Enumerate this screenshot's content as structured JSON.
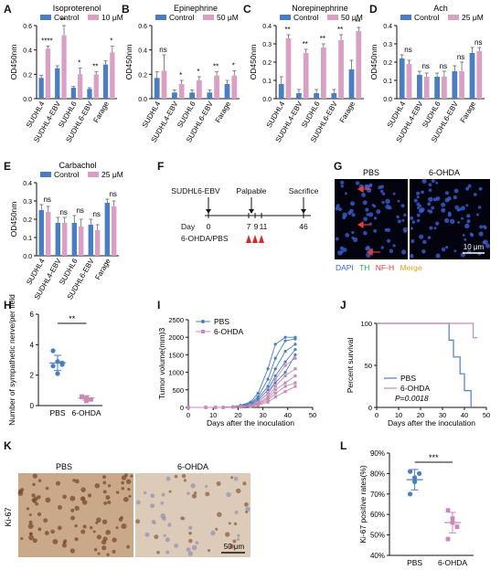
{
  "colors": {
    "control": "#4a7ec2",
    "treatment": "#d9a0c4",
    "dot_pbs": "#4a7ec2",
    "dot_6ohda": "#c98ab7",
    "arrow": "#e0403a",
    "dapi": "#3a5fd0",
    "th": "#22b14c",
    "nfh": "#e03a3a",
    "merge": "#e0a020"
  },
  "panel_letters": [
    "A",
    "B",
    "C",
    "D",
    "E",
    "F",
    "G",
    "H",
    "I",
    "J",
    "K",
    "L"
  ],
  "cell_lines": [
    "SUDHL4",
    "SUDHL4-EBV",
    "SUDHL6",
    "SUDHL6-EBV",
    "Farage"
  ],
  "legend": {
    "control": "Control",
    "ten_um": "10 μM",
    "fifty_um": "50 μM",
    "twentyfive_um": "25 μM"
  },
  "ylabel_od": "OD450nm",
  "panel_f": {
    "cell": "SUDHL6-EBV",
    "palpable": "Palpable",
    "sacrifice": "Sacrifice",
    "day_label": "Day",
    "days": [
      "0",
      "7",
      "9",
      "11",
      "46"
    ],
    "treatment": "6-OHDA/PBS"
  },
  "panel_g": {
    "left": "PBS",
    "right": "6-OHDA",
    "scale": "10 μm",
    "stain_dapi": "DAPI",
    "stain_th": "TH",
    "stain_nfh": "NF-H",
    "stain_merge": "Merge"
  },
  "panel_k": {
    "left": "PBS",
    "right": "6-OHDA",
    "ylabel": "Ki-67",
    "scale": "50 μm"
  },
  "chart_data": [
    {
      "id": "A",
      "type": "bar",
      "title": "Isoproterenol",
      "ylabel": "OD450nm",
      "ylim": [
        0,
        0.6
      ],
      "yticks": [
        "0.0",
        "0.2",
        "0.4",
        "0.6"
      ],
      "categories": [
        "SUDHL4",
        "SUDHL4-EBV",
        "SUDHL6",
        "SUDHL6-EBV",
        "Farage"
      ],
      "series": [
        {
          "name": "Control",
          "values": [
            0.17,
            0.25,
            0.09,
            0.08,
            0.28
          ],
          "errors": [
            0.02,
            0.02,
            0.01,
            0.01,
            0.03
          ]
        },
        {
          "name": "10 μM",
          "values": [
            0.41,
            0.52,
            0.2,
            0.2,
            0.38
          ],
          "errors": [
            0.02,
            0.08,
            0.05,
            0.02,
            0.05
          ]
        }
      ],
      "annotations": [
        "****",
        "**",
        "*",
        "**",
        "*"
      ]
    },
    {
      "id": "B",
      "type": "bar",
      "title": "Epinephrine",
      "ylabel": "OD450nm",
      "ylim": [
        0,
        0.6
      ],
      "yticks": [
        "0.0",
        "0.2",
        "0.4",
        "0.6"
      ],
      "categories": [
        "SUDHL4",
        "SUDHL4-EBV",
        "SUDHL6",
        "SUDHL6-EBV",
        "Farage"
      ],
      "series": [
        {
          "name": "Control",
          "values": [
            0.17,
            0.05,
            0.05,
            0.05,
            0.12
          ],
          "errors": [
            0.05,
            0.02,
            0.02,
            0.02,
            0.03
          ]
        },
        {
          "name": "50 μM",
          "values": [
            0.23,
            0.12,
            0.15,
            0.19,
            0.19
          ],
          "errors": [
            0.13,
            0.03,
            0.03,
            0.03,
            0.04
          ]
        }
      ],
      "annotations": [
        "ns",
        "*",
        "*",
        "**",
        "*"
      ]
    },
    {
      "id": "C",
      "type": "bar",
      "title": "Norepinephrine",
      "ylabel": "OD450nm",
      "ylim": [
        0,
        0.4
      ],
      "yticks": [
        "0.0",
        "0.1",
        "0.2",
        "0.3",
        "0.4"
      ],
      "categories": [
        "SUDHL4",
        "SUDHL4-EBV",
        "SUDHL6",
        "SUDHL6-EBV",
        "Farage"
      ],
      "series": [
        {
          "name": "Control",
          "values": [
            0.08,
            0.03,
            0.03,
            0.03,
            0.16
          ],
          "errors": [
            0.04,
            0.02,
            0.02,
            0.02,
            0.05
          ]
        },
        {
          "name": "50 μM",
          "values": [
            0.33,
            0.25,
            0.28,
            0.32,
            0.37
          ],
          "errors": [
            0.02,
            0.02,
            0.02,
            0.03,
            0.02
          ]
        }
      ],
      "annotations": [
        "**",
        "**",
        "**",
        "**",
        "**"
      ]
    },
    {
      "id": "D",
      "type": "bar",
      "title": "Ach",
      "ylabel": "OD450nm",
      "ylim": [
        0,
        0.4
      ],
      "yticks": [
        "0.0",
        "0.1",
        "0.2",
        "0.3",
        "0.4"
      ],
      "categories": [
        "SUDHL4",
        "SUDHL4-EBV",
        "SUDHL6",
        "SUDHL6-EBV",
        "Farage"
      ],
      "series": [
        {
          "name": "Control",
          "values": [
            0.22,
            0.13,
            0.12,
            0.15,
            0.25
          ],
          "errors": [
            0.02,
            0.02,
            0.02,
            0.03,
            0.03
          ]
        },
        {
          "name": "25 μM",
          "values": [
            0.19,
            0.12,
            0.12,
            0.15,
            0.26
          ],
          "errors": [
            0.02,
            0.02,
            0.03,
            0.05,
            0.02
          ]
        }
      ],
      "annotations": [
        "ns",
        "ns",
        "ns",
        "ns",
        "ns"
      ]
    },
    {
      "id": "E",
      "type": "bar",
      "title": "Carbachol",
      "ylabel": "OD450nm",
      "ylim": [
        0,
        0.4
      ],
      "yticks": [
        "0.0",
        "0.1",
        "0.2",
        "0.3",
        "0.4"
      ],
      "categories": [
        "SUDHL4",
        "SUDHL4-EBV",
        "SUDHL6",
        "SUDHL6-EBV",
        "Farage"
      ],
      "series": [
        {
          "name": "Control",
          "values": [
            0.25,
            0.18,
            0.18,
            0.17,
            0.29
          ],
          "errors": [
            0.03,
            0.03,
            0.04,
            0.03,
            0.02
          ]
        },
        {
          "name": "25 μM",
          "values": [
            0.24,
            0.18,
            0.16,
            0.14,
            0.27
          ],
          "errors": [
            0.03,
            0.03,
            0.04,
            0.03,
            0.03
          ]
        }
      ],
      "annotations": [
        "ns",
        "ns",
        "ns",
        "ns",
        "ns"
      ]
    },
    {
      "id": "H",
      "type": "scatter",
      "ylabel": "Number of sympathetic nerve/per field",
      "ylim": [
        0,
        6
      ],
      "yticks": [
        "0",
        "2",
        "4",
        "6"
      ],
      "categories": [
        "PBS",
        "6-OHDA"
      ],
      "series": [
        {
          "name": "PBS",
          "values": [
            3.6,
            2.9,
            2.7,
            2.6,
            2.1,
            2.8
          ],
          "mean": 2.8,
          "sd": 0.5
        },
        {
          "name": "6-OHDA",
          "values": [
            0.6,
            0.5,
            0.4,
            0.55,
            0.3
          ],
          "mean": 0.5,
          "sd": 0.15
        }
      ],
      "significance": "**"
    },
    {
      "id": "I",
      "type": "line",
      "ylabel": "Tumor volume(mm)3",
      "xlabel": "Days after the inoculation",
      "xlim": [
        0,
        50
      ],
      "ylim": [
        0,
        2500
      ],
      "xticks": [
        "0",
        "10",
        "20",
        "30",
        "40",
        "50"
      ],
      "yticks": [
        "0",
        "500",
        "1000",
        "1500",
        "2000",
        "2500"
      ],
      "x": [
        0,
        7,
        11,
        14,
        18,
        21,
        25,
        28,
        32,
        35,
        39,
        43
      ],
      "series": [
        {
          "name": "PBS",
          "lines": [
            [
              0,
              0,
              0,
              0,
              20,
              60,
              150,
              400,
              1100,
              1800,
              2000,
              2000
            ],
            [
              0,
              0,
              0,
              0,
              20,
              50,
              120,
              300,
              800,
              1400,
              1900,
              1950
            ],
            [
              0,
              0,
              0,
              0,
              10,
              40,
              100,
              250,
              600,
              1100,
              1600,
              1800
            ],
            [
              0,
              0,
              0,
              0,
              10,
              30,
              80,
              200,
              500,
              900,
              1300,
              1650
            ],
            [
              0,
              0,
              0,
              0,
              10,
              30,
              70,
              150,
              400,
              700,
              1000,
              1500
            ]
          ]
        },
        {
          "name": "6-OHDA",
          "lines": [
            [
              0,
              0,
              0,
              0,
              10,
              30,
              60,
              150,
              400,
              800,
              1200,
              1400
            ],
            [
              0,
              0,
              0,
              0,
              10,
              20,
              50,
              120,
              300,
              600,
              900,
              1100
            ],
            [
              0,
              0,
              0,
              0,
              10,
              20,
              40,
              100,
              250,
              500,
              700,
              900
            ],
            [
              0,
              0,
              0,
              0,
              5,
              15,
              30,
              80,
              200,
              400,
              600,
              700
            ],
            [
              0,
              0,
              0,
              0,
              5,
              10,
              25,
              60,
              150,
              300,
              450,
              600
            ]
          ]
        }
      ]
    },
    {
      "id": "J",
      "type": "line",
      "ylabel": "Percent survival",
      "xlabel": "Days after the inoculation",
      "xlim": [
        0,
        50
      ],
      "ylim": [
        0,
        100
      ],
      "xticks": [
        "0",
        "10",
        "20",
        "30",
        "40",
        "50"
      ],
      "yticks": [
        "0",
        "50",
        "100"
      ],
      "series": [
        {
          "name": "PBS",
          "points": [
            [
              0,
              100
            ],
            [
              33,
              100
            ],
            [
              33,
              80
            ],
            [
              35,
              80
            ],
            [
              35,
              60
            ],
            [
              38,
              60
            ],
            [
              38,
              40
            ],
            [
              40,
              40
            ],
            [
              40,
              20
            ],
            [
              43,
              20
            ],
            [
              43,
              0
            ]
          ]
        },
        {
          "name": "6-OHDA",
          "points": [
            [
              0,
              100
            ],
            [
              44,
              100
            ],
            [
              44,
              83
            ],
            [
              46,
              83
            ]
          ]
        }
      ],
      "pvalue": "P=0.0018"
    },
    {
      "id": "L",
      "type": "scatter",
      "ylabel": "Ki-67 positive rates(%)",
      "ylim": [
        40,
        90
      ],
      "yticks": [
        "40",
        "50",
        "60",
        "70",
        "80",
        "90"
      ],
      "yticks_suffix": "%",
      "categories": [
        "PBS",
        "6-OHDA"
      ],
      "series": [
        {
          "name": "PBS",
          "values": [
            81,
            78,
            80,
            70,
            76
          ],
          "mean": 77,
          "sd": 5
        },
        {
          "name": "6-OHDA",
          "values": [
            62,
            58,
            54,
            48,
            56
          ],
          "mean": 56,
          "sd": 5
        }
      ],
      "significance": "***"
    }
  ]
}
